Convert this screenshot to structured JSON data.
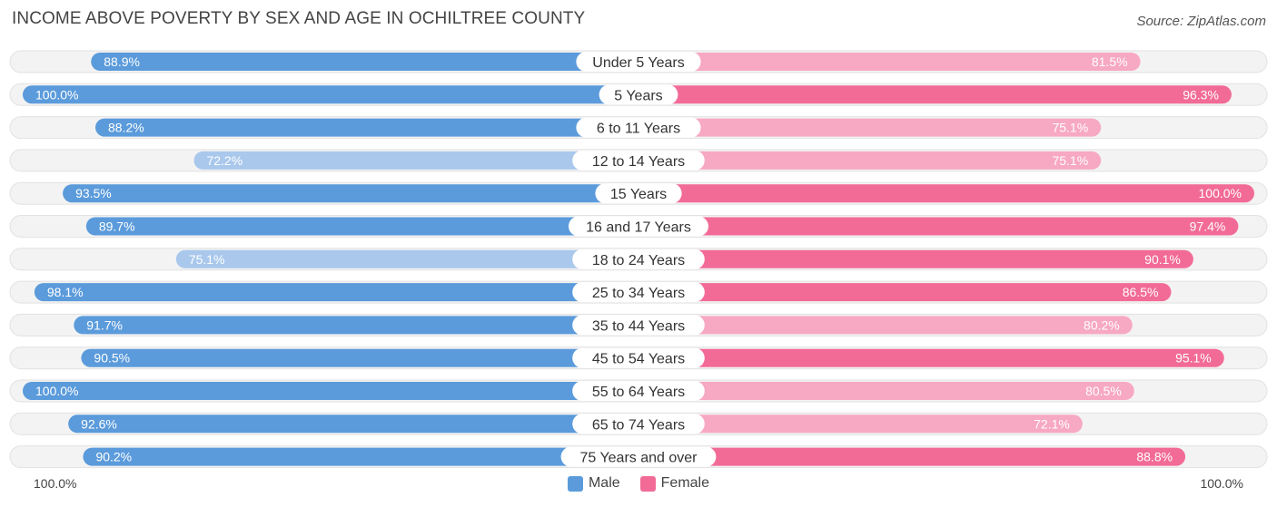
{
  "title": "INCOME ABOVE POVERTY BY SEX AND AGE IN OCHILTREE COUNTY",
  "source": "Source: ZipAtlas.com",
  "axis": {
    "left_label": "100.0%",
    "right_label": "100.0%"
  },
  "legend": {
    "male_label": "Male",
    "female_label": "Female"
  },
  "colors": {
    "male_strong": "#5b9bdb",
    "male_light": "#a9c8ec",
    "female_strong": "#f26b97",
    "female_light": "#f7a8c2",
    "track": "#eeeeee"
  },
  "chart_data": {
    "type": "bar",
    "orientation": "horizontal-diverging",
    "title": "INCOME ABOVE POVERTY BY SEX AND AGE IN OCHILTREE COUNTY",
    "xlim": [
      0,
      100
    ],
    "categories": [
      "Under 5 Years",
      "5 Years",
      "6 to 11 Years",
      "12 to 14 Years",
      "15 Years",
      "16 and 17 Years",
      "18 to 24 Years",
      "25 to 34 Years",
      "35 to 44 Years",
      "45 to 54 Years",
      "55 to 64 Years",
      "65 to 74 Years",
      "75 Years and over"
    ],
    "series": [
      {
        "name": "Male",
        "side": "left",
        "values": [
          88.9,
          100.0,
          88.2,
          72.2,
          93.5,
          89.7,
          75.1,
          98.1,
          91.7,
          90.5,
          100.0,
          92.6,
          90.2
        ],
        "labels": [
          "88.9%",
          "100.0%",
          "88.2%",
          "72.2%",
          "93.5%",
          "89.7%",
          "75.1%",
          "98.1%",
          "91.7%",
          "90.5%",
          "100.0%",
          "92.6%",
          "90.2%"
        ]
      },
      {
        "name": "Female",
        "side": "right",
        "values": [
          81.5,
          96.3,
          75.1,
          75.1,
          100.0,
          97.4,
          90.1,
          86.5,
          80.2,
          95.1,
          80.5,
          72.1,
          88.8
        ],
        "labels": [
          "81.5%",
          "96.3%",
          "75.1%",
          "75.1%",
          "100.0%",
          "97.4%",
          "90.1%",
          "86.5%",
          "80.2%",
          "95.1%",
          "80.5%",
          "72.1%",
          "88.8%"
        ]
      }
    ]
  }
}
